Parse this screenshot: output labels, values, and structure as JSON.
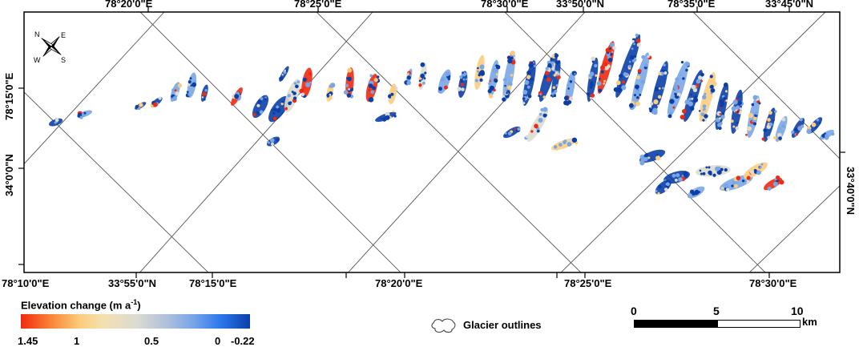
{
  "map": {
    "top_labels": [
      "78°20'0\"E",
      "78°25'0\"E",
      "78°30'0\"E",
      "33°50'0\"N",
      "78°35'0\"E",
      "33°45'0\"N"
    ],
    "bottom_labels": [
      "78°10'0\"E",
      "33°55'0\"N",
      "78°15'0\"E",
      "78°20'0\"E",
      "78°25'0\"E",
      "78°30'0\"E"
    ],
    "left_labels": [
      "78°15'0\"E",
      "34°0'0\"N"
    ],
    "right_labels": [
      "33°40'0\"N"
    ],
    "north_arrow": {
      "letters": [
        "N",
        "E",
        "S",
        "W"
      ]
    }
  },
  "legend": {
    "title_main": "Elevation change (m a",
    "title_sup": "-1",
    "title_end": ")",
    "ticks": [
      "1.45",
      "1",
      "0.5",
      "0",
      "-0.22"
    ],
    "colors": {
      "high": "#f02a10",
      "mid_high": "#fccd7e",
      "mid": "#dcdcd0",
      "mid_low": "#7aa6e6",
      "low": "#0b3fa8"
    },
    "outline_label": "Glacier outlines"
  },
  "scalebar": {
    "ticks": [
      "0",
      "5",
      "10"
    ],
    "unit": "km"
  }
}
